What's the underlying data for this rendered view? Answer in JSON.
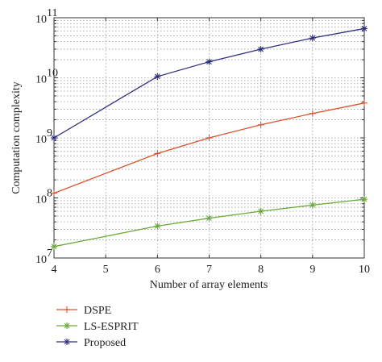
{
  "chart_data": {
    "type": "line",
    "xlabel": "Number of array elements",
    "ylabel": "Computation complexity",
    "x": [
      4,
      6,
      7,
      8,
      9,
      10
    ],
    "xlim": [
      4,
      10
    ],
    "xticks": [
      "4",
      "5",
      "6",
      "7",
      "8",
      "9",
      "10"
    ],
    "ylim": [
      10000000,
      100000000000
    ],
    "yscale": "log",
    "yticks": [
      {
        "base": "10",
        "exp": "7"
      },
      {
        "base": "10",
        "exp": "8"
      },
      {
        "base": "10",
        "exp": "9"
      },
      {
        "base": "10",
        "exp": "10"
      },
      {
        "base": "10",
        "exp": "11"
      }
    ],
    "grid": true,
    "legend_position": "below the plot, left",
    "series": [
      {
        "name": "DSPE",
        "marker": "plus",
        "color": "#d9542b",
        "values": [
          120000000,
          550000000,
          1000000000,
          1650000000,
          2550000000,
          3800000000
        ]
      },
      {
        "name": "LS-ESPRIT",
        "marker": "asterisk",
        "color": "#6aaa3a",
        "values": [
          15500000,
          34000000,
          46000000,
          60000000,
          76000000,
          95000000
        ]
      },
      {
        "name": "Proposed",
        "marker": "asterisk",
        "color": "#2e2f80",
        "values": [
          1000000000,
          10500000000,
          18500000000,
          30000000000,
          46000000000,
          66000000000
        ]
      }
    ]
  }
}
